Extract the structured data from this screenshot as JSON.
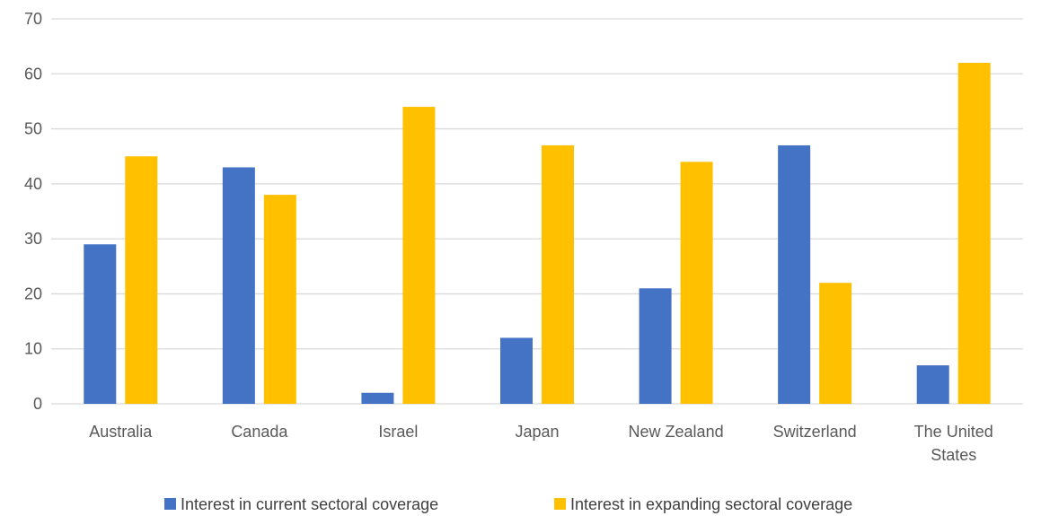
{
  "colors": {
    "current": "#4472C4",
    "expanding": "#FFC000",
    "grid": "#D9D9D9",
    "text": "#595959"
  },
  "chart_data": {
    "type": "bar",
    "title": "",
    "xlabel": "",
    "ylabel": "",
    "categories": [
      [
        "Australia"
      ],
      [
        "Canada"
      ],
      [
        "Israel"
      ],
      [
        "Japan"
      ],
      [
        "New Zealand"
      ],
      [
        "Switzerland"
      ],
      [
        "The United",
        "States"
      ]
    ],
    "series": [
      {
        "name": "Interest in current sectoral coverage",
        "color": "#4472C4",
        "values": [
          29,
          43,
          2,
          12,
          21,
          47,
          7
        ]
      },
      {
        "name": "Interest in expanding sectoral coverage",
        "color": "#FFC000",
        "values": [
          45,
          38,
          54,
          47,
          44,
          22,
          62
        ]
      }
    ],
    "ylim": [
      0,
      70
    ],
    "yticks": [
      0,
      10,
      20,
      30,
      40,
      50,
      60,
      70
    ],
    "grid": true,
    "legend_position": "bottom"
  }
}
